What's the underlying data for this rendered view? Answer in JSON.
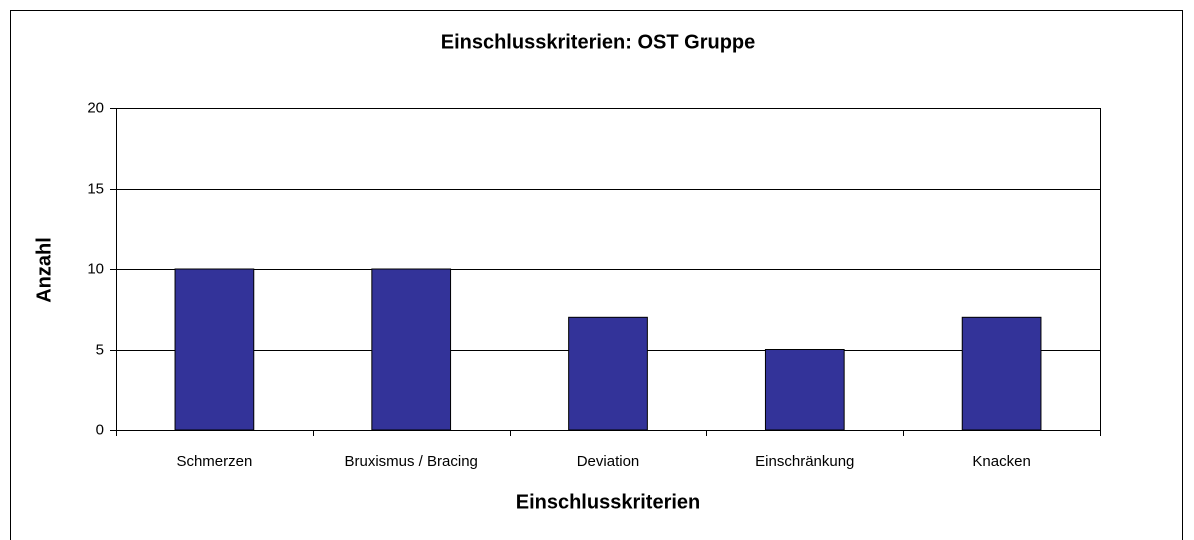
{
  "chart_data": {
    "type": "bar",
    "title": "Einschlusskriterien: OST Gruppe",
    "x_label": "Einschlusskriterien",
    "y_label": "Anzahl",
    "categories": [
      "Schmerzen",
      "Bruxismus / Bracing",
      "Deviation",
      "Einschränkung",
      "Knacken"
    ],
    "values": [
      10,
      10,
      7,
      5,
      7
    ],
    "color": "#333399",
    "ylim": [
      0,
      20
    ],
    "yticks": [
      0,
      5,
      10,
      15,
      20
    ],
    "grid": true
  }
}
